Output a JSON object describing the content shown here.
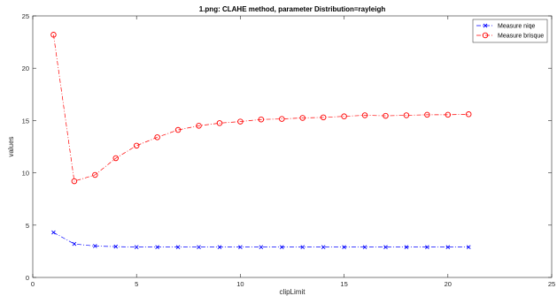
{
  "chart_data": {
    "type": "line",
    "title": "1.png:  CLAHE method, parameter Distribution=rayleigh",
    "xlabel": "clipLimit",
    "ylabel": "values",
    "xlim": [
      0,
      25
    ],
    "ylim": [
      0,
      25
    ],
    "xticks": [
      "0",
      "5",
      "10",
      "15",
      "20",
      "25"
    ],
    "yticks": [
      "0",
      "5",
      "10",
      "15",
      "20",
      "25"
    ],
    "grid": false,
    "legend_position": "top-right",
    "x": [
      1,
      2,
      3,
      4,
      5,
      6,
      7,
      8,
      9,
      10,
      11,
      12,
      13,
      14,
      15,
      16,
      17,
      18,
      19,
      20,
      21
    ],
    "series": [
      {
        "name": "Measure niqe",
        "color": "#0000ff",
        "marker": "x",
        "line": "dash-dot",
        "values": [
          4.3,
          3.2,
          3.0,
          2.95,
          2.9,
          2.9,
          2.9,
          2.9,
          2.9,
          2.9,
          2.9,
          2.9,
          2.9,
          2.9,
          2.9,
          2.9,
          2.9,
          2.9,
          2.9,
          2.9,
          2.9
        ]
      },
      {
        "name": "Measure brisque",
        "color": "#ff0000",
        "marker": "o",
        "line": "dash-dot",
        "values": [
          23.2,
          9.2,
          9.8,
          11.4,
          12.6,
          13.4,
          14.1,
          14.5,
          14.75,
          14.9,
          15.1,
          15.15,
          15.25,
          15.3,
          15.4,
          15.5,
          15.45,
          15.5,
          15.55,
          15.55,
          15.6
        ]
      }
    ]
  }
}
